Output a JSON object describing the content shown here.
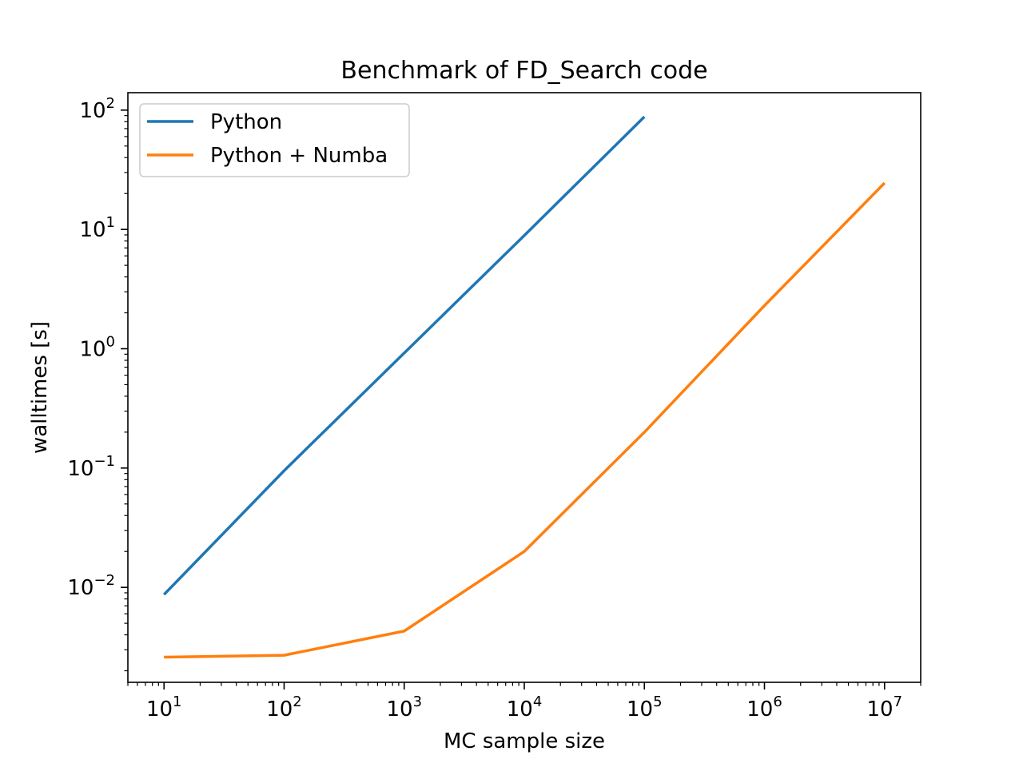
{
  "chart_data": {
    "type": "line",
    "title": "Benchmark of FD_Search code",
    "xlabel": "MC sample size",
    "ylabel": "walltimes [s]",
    "xscale": "log",
    "yscale": "log",
    "xlim": [
      5,
      20000000
    ],
    "ylim": [
      0.0016,
      140
    ],
    "xticks": [
      {
        "value": 10,
        "base": "10",
        "exp": "1"
      },
      {
        "value": 100,
        "base": "10",
        "exp": "2"
      },
      {
        "value": 1000,
        "base": "10",
        "exp": "3"
      },
      {
        "value": 10000,
        "base": "10",
        "exp": "4"
      },
      {
        "value": 100000,
        "base": "10",
        "exp": "5"
      },
      {
        "value": 1000000,
        "base": "10",
        "exp": "6"
      },
      {
        "value": 10000000,
        "base": "10",
        "exp": "7"
      }
    ],
    "yticks": [
      {
        "value": 0.01,
        "base": "10",
        "exp": "−2"
      },
      {
        "value": 0.1,
        "base": "10",
        "exp": "−1"
      },
      {
        "value": 1,
        "base": "10",
        "exp": "0"
      },
      {
        "value": 10,
        "base": "10",
        "exp": "1"
      },
      {
        "value": 100,
        "base": "10",
        "exp": "2"
      }
    ],
    "grid": false,
    "legend_position": "top-left",
    "series": [
      {
        "name": "Python",
        "color": "#1f77b4",
        "x": [
          10,
          100,
          1000,
          10000,
          100000
        ],
        "y": [
          0.0087,
          0.095,
          0.92,
          8.9,
          88
        ]
      },
      {
        "name": "Python + Numba",
        "color": "#ff7f0e",
        "x": [
          10,
          100,
          1000,
          10000,
          100000,
          1000000,
          10000000
        ],
        "y": [
          0.0026,
          0.0027,
          0.0043,
          0.02,
          0.2,
          2.3,
          24.5
        ]
      }
    ]
  }
}
